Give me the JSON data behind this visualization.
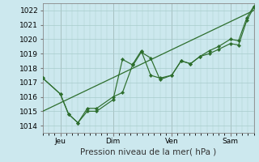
{
  "title": "",
  "xlabel": "Pression niveau de la mer( hPa )",
  "ylabel": "",
  "background_color": "#cce8ee",
  "grid_color": "#a8cccc",
  "line_color": "#2d6e2d",
  "xlim": [
    0.0,
    9.0
  ],
  "ylim": [
    1013.5,
    1022.5
  ],
  "yticks": [
    1014,
    1015,
    1016,
    1017,
    1018,
    1019,
    1020,
    1021,
    1022
  ],
  "xtick_positions": [
    0.75,
    3.0,
    5.5,
    8.0
  ],
  "xtick_labels": [
    "Jeu",
    "Dim",
    "Ven",
    "Sam"
  ],
  "vline_positions": [
    0.75,
    3.0,
    5.5,
    8.0
  ],
  "series1_x": [
    0.0,
    0.75,
    1.1,
    1.5,
    1.9,
    2.3,
    3.0,
    3.4,
    3.85,
    4.2,
    4.6,
    5.0,
    5.5,
    5.9,
    6.3,
    6.7,
    7.1,
    7.5,
    8.0,
    8.35,
    8.7,
    9.0
  ],
  "series1_y": [
    1017.3,
    1016.2,
    1014.8,
    1014.2,
    1015.0,
    1015.0,
    1015.8,
    1018.6,
    1018.2,
    1019.1,
    1018.7,
    1017.2,
    1017.5,
    1018.5,
    1018.3,
    1018.8,
    1019.0,
    1019.3,
    1019.7,
    1019.6,
    1021.3,
    1022.2
  ],
  "series2_x": [
    0.0,
    0.75,
    1.1,
    1.5,
    1.9,
    2.3,
    3.0,
    3.4,
    3.85,
    4.2,
    4.6,
    5.0,
    5.5,
    5.9,
    6.3,
    6.7,
    7.1,
    7.5,
    8.0,
    8.35,
    8.7,
    9.0
  ],
  "series2_y": [
    1017.3,
    1016.2,
    1014.8,
    1014.2,
    1015.2,
    1015.2,
    1016.0,
    1016.3,
    1018.3,
    1019.2,
    1017.5,
    1017.3,
    1017.5,
    1018.5,
    1018.3,
    1018.8,
    1019.2,
    1019.5,
    1020.0,
    1019.9,
    1021.5,
    1022.3
  ],
  "trend_x": [
    0.0,
    9.0
  ],
  "trend_y": [
    1015.0,
    1022.0
  ]
}
